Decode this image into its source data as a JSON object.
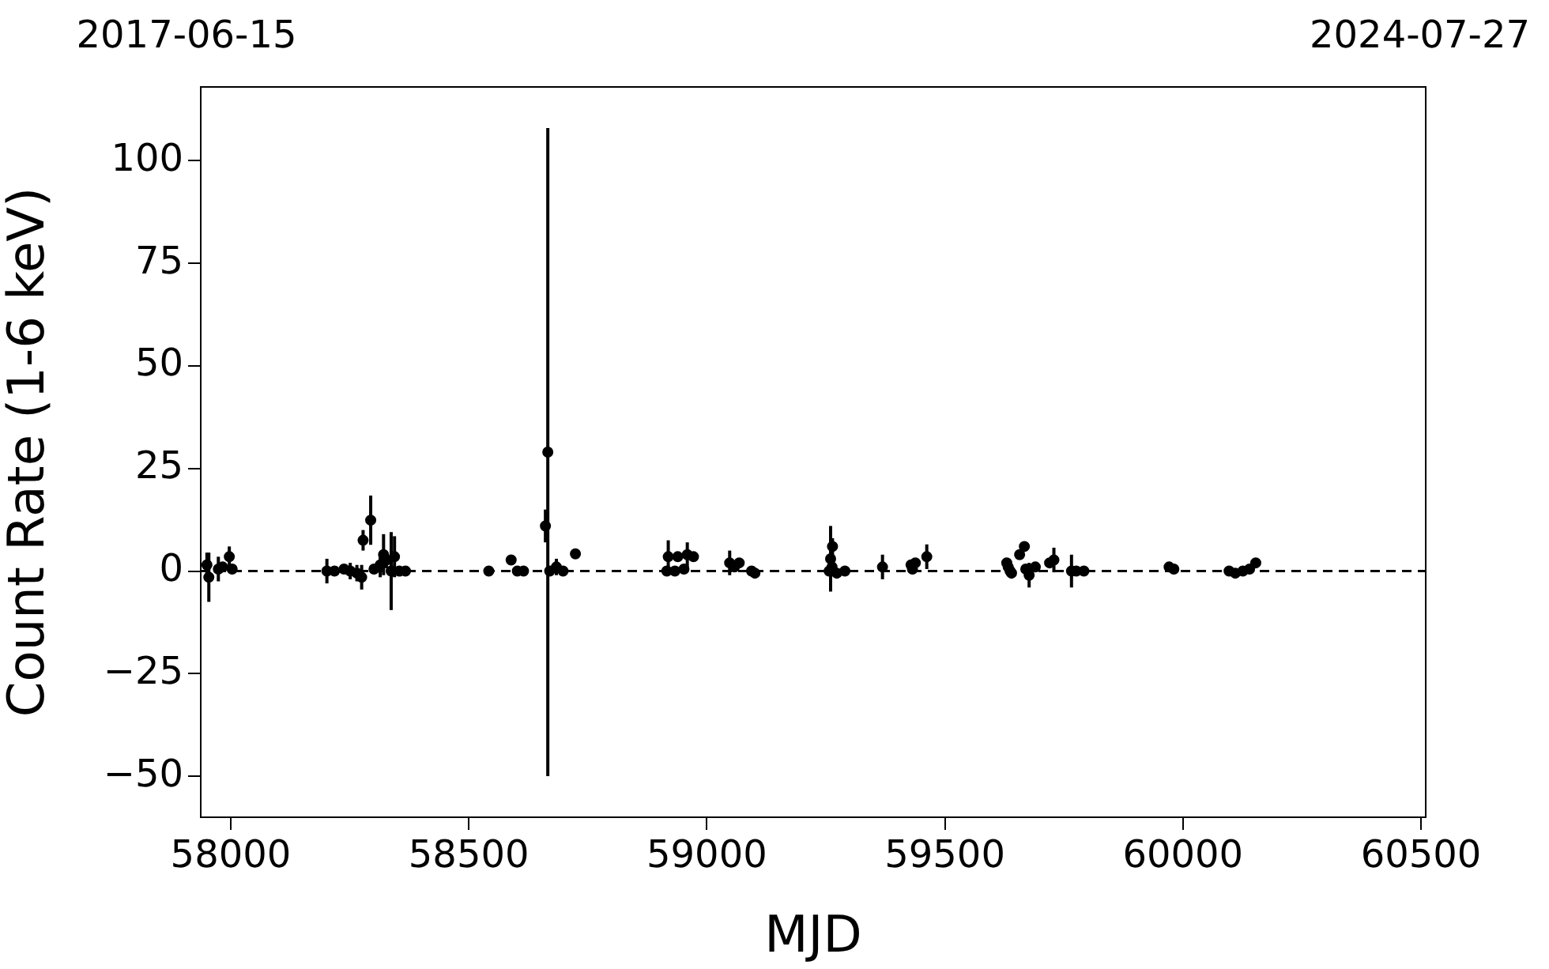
{
  "chart_data": {
    "type": "scatter",
    "xlabel": "MJD",
    "ylabel": "Count Rate (1-6 keV)",
    "annotations": [
      "2017-06-15",
      "2024-07-27"
    ],
    "x": [
      57950,
      57954,
      57974,
      57983,
      57997,
      58003,
      58202,
      58218,
      58238,
      58251,
      58265,
      58275,
      58278,
      58294,
      58301,
      58314,
      58321,
      58327,
      58337,
      58344,
      58354,
      58367,
      58542,
      58589,
      58602,
      58615,
      58661,
      58666,
      58670,
      58684,
      58698,
      58724,
      58916,
      58919,
      58933,
      58939,
      58952,
      58959,
      58972,
      59048,
      59058,
      59068,
      59094,
      59101,
      59257,
      59260,
      59263,
      59264,
      59273,
      59290,
      59369,
      59429,
      59432,
      59438,
      59462,
      59630,
      59633,
      59637,
      59640,
      59657,
      59667,
      59670,
      59677,
      59690,
      59720,
      59729,
      59766,
      59776,
      59792,
      59971,
      59981,
      60097,
      60110,
      60126,
      60140,
      60153
    ],
    "values": [
      1.5,
      -1.5,
      0.5,
      1,
      3.5,
      0.5,
      0,
      0,
      0.5,
      0,
      -0.5,
      -1.5,
      7.5,
      12.4,
      0.5,
      1.5,
      4,
      2.7,
      0,
      3.5,
      0,
      0,
      0,
      2.7,
      0,
      0,
      11,
      29,
      0,
      1,
      0,
      4.2,
      0,
      3.5,
      0,
      3.5,
      0.5,
      4,
      3.5,
      2,
      1,
      2,
      0,
      -0.5,
      0,
      3,
      1,
      6,
      -0.5,
      0,
      1,
      1.5,
      0.5,
      2,
      3.5,
      2,
      1,
      0,
      -0.5,
      4,
      6,
      0.5,
      -1,
      1,
      2,
      2.7,
      0,
      0,
      0,
      1,
      0.5,
      0,
      -0.5,
      0,
      0.5,
      2
    ],
    "errors": [
      3,
      6,
      3,
      1,
      2.5,
      1,
      3,
      1,
      1,
      2,
      2,
      3,
      2.5,
      6,
      1,
      3,
      5,
      2,
      9.5,
      5,
      1,
      1,
      1,
      1,
      1,
      1,
      4,
      79,
      1,
      2,
      1,
      1,
      1,
      4,
      1,
      1,
      1,
      3,
      1,
      3,
      1,
      1,
      1,
      1,
      1,
      8,
      1,
      2,
      1,
      1,
      3,
      1,
      1,
      1,
      3,
      1,
      1,
      1,
      1,
      1,
      1,
      1,
      3,
      1,
      1,
      3,
      4,
      1,
      1,
      1,
      1,
      1,
      1,
      1,
      1,
      1
    ],
    "color": "#000000",
    "marker": "circle",
    "xlim": [
      57937,
      60510
    ],
    "xticks": [
      58000,
      58500,
      59000,
      59500,
      60000,
      60500
    ],
    "ylim": [
      -60,
      118
    ],
    "yticks": [
      -50,
      -25,
      0,
      25,
      50,
      75,
      100
    ],
    "ref_lines": [
      {
        "axis": "y",
        "value": 0,
        "color": "#000000",
        "line_style": "dashed"
      }
    ],
    "grid": false,
    "legend": false
  }
}
